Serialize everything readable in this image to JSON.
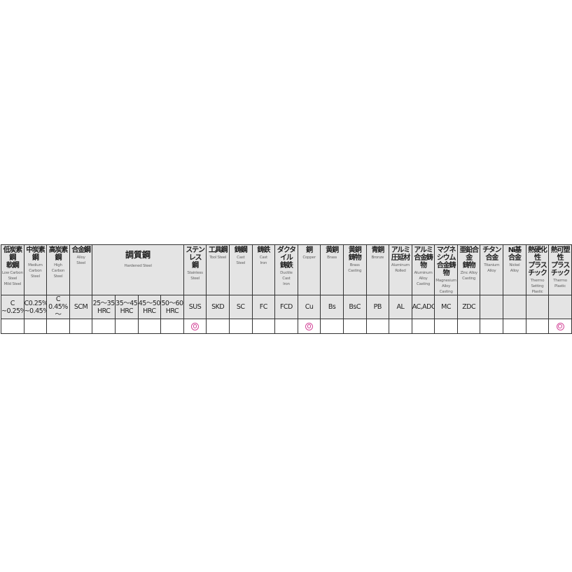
{
  "mark_color": "#d4489a",
  "header": [
    {
      "jp": "低炭素鋼\n軟鋼",
      "en": "Low Carbon\nSteel\nMild Steel",
      "span": 1
    },
    {
      "jp": "中炭素鋼",
      "en": "Medium\nCarbon\nSteel",
      "span": 1
    },
    {
      "jp": "高炭素鋼",
      "en": "High\nCarbon\nSteel",
      "span": 1
    },
    {
      "jp": "合金鋼",
      "en": "Alloy\nSteel",
      "span": 1
    },
    {
      "jp": "調質鋼",
      "en": "Hardened Steel",
      "span": 4,
      "big": true
    },
    {
      "jp": "ステンレス\n鋼",
      "en": "Stainless\nSteel",
      "span": 1
    },
    {
      "jp": "工具鋼",
      "en": "Tool Steel",
      "span": 1
    },
    {
      "jp": "鋳鋼",
      "en": "Cast\nSteel",
      "span": 1
    },
    {
      "jp": "鋳鉄",
      "en": "Cast\nIron",
      "span": 1
    },
    {
      "jp": "ダクタイル\n鋳鉄",
      "en": "Ductile\nCast\nIron",
      "span": 1
    },
    {
      "jp": "銅",
      "en": "Copper",
      "span": 1
    },
    {
      "jp": "黄銅",
      "en": "Brass",
      "span": 1
    },
    {
      "jp": "黄銅\n鋳物",
      "en": "Brass\nCasting",
      "span": 1
    },
    {
      "jp": "青銅",
      "en": "Bronze",
      "span": 1
    },
    {
      "jp": "アルミ\n圧延材",
      "en": "Aluminum\nRolled",
      "span": 1
    },
    {
      "jp": "アルミ\n合金鋳物",
      "en": "Aluminum\nAlloy\nCasting",
      "span": 1
    },
    {
      "jp": "マグネシウム\n合金鋳物",
      "en": "Magnesium\nAlloy\nCasting",
      "span": 1
    },
    {
      "jp": "亜鉛合金\n鋳物",
      "en": "Zinc Alloy\nCasting",
      "span": 1
    },
    {
      "jp": "チタン\n合金",
      "en": "Titanium\nAlloy",
      "span": 1
    },
    {
      "jp": "Ni基\n合金",
      "en": "Nickel\nAlloy",
      "span": 1
    },
    {
      "jp": "熱硬化性\nプラスチック",
      "en": "Thermo\nSetting\nPlastic",
      "span": 1
    },
    {
      "jp": "熱可塑性\nプラスチック",
      "en": "Thermo\nPlastic",
      "span": 1
    }
  ],
  "codes": [
    "C\n~0.25%",
    "C0.25%\n~0.45%",
    "C\n0.45%～",
    "SCM",
    "25～35\nHRC",
    "35～45\nHRC",
    "45～50\nHRC",
    "50～60\nHRC",
    "SUS",
    "SKD",
    "SC",
    "FC",
    "FCD",
    "Cu",
    "Bs",
    "BsC",
    "PB",
    "AL",
    "AC,ADC",
    "MC",
    "ZDC",
    "",
    "",
    "",
    ""
  ],
  "marks": [
    "",
    "",
    "",
    "",
    "",
    "",
    "",
    "",
    "◎",
    "",
    "",
    "",
    "",
    "◎",
    "",
    "",
    "",
    "",
    "",
    "",
    "",
    "",
    "",
    "",
    "◎"
  ]
}
